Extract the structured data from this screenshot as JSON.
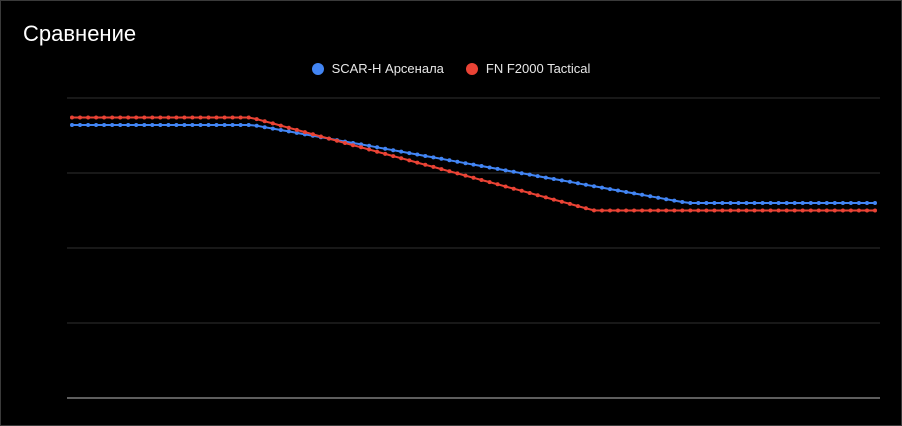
{
  "chart_data": {
    "type": "line",
    "title": "Сравнение",
    "xlabel": "",
    "ylabel": "",
    "legend_position": "top",
    "grid": true,
    "ylim": [
      0,
      4
    ],
    "x": [
      0,
      1,
      2,
      3,
      4,
      5,
      6,
      7,
      8,
      9,
      10,
      11,
      12,
      13,
      14,
      15,
      16,
      17,
      18,
      19,
      20,
      21,
      22,
      23,
      24,
      25,
      26,
      27,
      28,
      29,
      30,
      31,
      32,
      33,
      34,
      35,
      36,
      37,
      38,
      39,
      40,
      41,
      42,
      43,
      44,
      45,
      46,
      47,
      48,
      49,
      50,
      51,
      52,
      53,
      54,
      55,
      56,
      57,
      58,
      59,
      60,
      61,
      62,
      63,
      64,
      65,
      66,
      67,
      68,
      69,
      70,
      71,
      72,
      73,
      74,
      75,
      76,
      77,
      78,
      79,
      80,
      81,
      82,
      83,
      84,
      85,
      86,
      87,
      88,
      89,
      90,
      91,
      92,
      93,
      94,
      95,
      96,
      97,
      98,
      99,
      100
    ],
    "series": [
      {
        "name": "SCAR-H Арсенала",
        "color": "#4285f4",
        "values": [
          3.64,
          3.64,
          3.64,
          3.64,
          3.64,
          3.64,
          3.64,
          3.64,
          3.64,
          3.64,
          3.64,
          3.64,
          3.64,
          3.64,
          3.64,
          3.64,
          3.64,
          3.64,
          3.64,
          3.64,
          3.64,
          3.64,
          3.64,
          3.631,
          3.611,
          3.592,
          3.573,
          3.554,
          3.535,
          3.515,
          3.496,
          3.477,
          3.458,
          3.439,
          3.419,
          3.4,
          3.381,
          3.362,
          3.343,
          3.323,
          3.304,
          3.285,
          3.266,
          3.247,
          3.227,
          3.208,
          3.189,
          3.17,
          3.151,
          3.131,
          3.112,
          3.093,
          3.074,
          3.055,
          3.035,
          3.016,
          2.997,
          2.978,
          2.959,
          2.939,
          2.92,
          2.901,
          2.882,
          2.863,
          2.843,
          2.824,
          2.805,
          2.786,
          2.767,
          2.747,
          2.728,
          2.709,
          2.69,
          2.671,
          2.651,
          2.632,
          2.613,
          2.6,
          2.6,
          2.6,
          2.6,
          2.6,
          2.6,
          2.6,
          2.6,
          2.6,
          2.6,
          2.6,
          2.6,
          2.6,
          2.6,
          2.6,
          2.6,
          2.6,
          2.6,
          2.6,
          2.6,
          2.6,
          2.6,
          2.6,
          2.6
        ]
      },
      {
        "name": "FN F2000 Tactical",
        "color": "#ea4335",
        "values": [
          3.74,
          3.74,
          3.74,
          3.74,
          3.74,
          3.74,
          3.74,
          3.74,
          3.74,
          3.74,
          3.74,
          3.74,
          3.74,
          3.74,
          3.74,
          3.74,
          3.74,
          3.74,
          3.74,
          3.74,
          3.74,
          3.74,
          3.74,
          3.719,
          3.69,
          3.661,
          3.632,
          3.603,
          3.574,
          3.545,
          3.516,
          3.487,
          3.458,
          3.429,
          3.4,
          3.371,
          3.342,
          3.313,
          3.284,
          3.255,
          3.226,
          3.197,
          3.168,
          3.139,
          3.11,
          3.081,
          3.052,
          3.023,
          2.994,
          2.965,
          2.936,
          2.907,
          2.878,
          2.849,
          2.82,
          2.791,
          2.762,
          2.733,
          2.704,
          2.675,
          2.646,
          2.617,
          2.588,
          2.559,
          2.53,
          2.501,
          2.5,
          2.5,
          2.5,
          2.5,
          2.5,
          2.5,
          2.5,
          2.5,
          2.5,
          2.5,
          2.5,
          2.5,
          2.5,
          2.5,
          2.5,
          2.5,
          2.5,
          2.5,
          2.5,
          2.5,
          2.5,
          2.5,
          2.5,
          2.5,
          2.5,
          2.5,
          2.5,
          2.5,
          2.5,
          2.5,
          2.5,
          2.5,
          2.5,
          2.5,
          2.5
        ]
      }
    ]
  },
  "colors": {
    "background": "#000000",
    "gridline": "#2f2f2f",
    "baseline": "#bdbdbd",
    "text": "#ffffff"
  }
}
